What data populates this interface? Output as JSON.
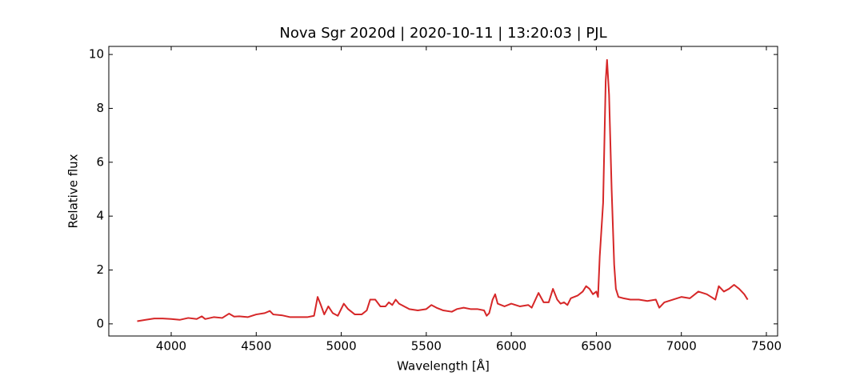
{
  "chart_data": {
    "type": "line",
    "title": "Nova Sgr 2020d | 2020-10-11 | 13:20:03 | PJL",
    "xlabel": "Wavelength [Å]",
    "ylabel": "Relative flux",
    "x": [
      3800,
      3850,
      3900,
      3950,
      4000,
      4050,
      4100,
      4150,
      4180,
      4200,
      4250,
      4300,
      4340,
      4370,
      4400,
      4450,
      4500,
      4550,
      4580,
      4600,
      4650,
      4700,
      4750,
      4800,
      4840,
      4861,
      4880,
      4900,
      4924,
      4950,
      4980,
      5015,
      5040,
      5080,
      5120,
      5150,
      5170,
      5200,
      5230,
      5260,
      5280,
      5300,
      5320,
      5340,
      5370,
      5400,
      5450,
      5500,
      5530,
      5560,
      5600,
      5650,
      5680,
      5720,
      5760,
      5800,
      5840,
      5855,
      5870,
      5890,
      5905,
      5920,
      5960,
      6000,
      6050,
      6100,
      6120,
      6160,
      6190,
      6220,
      6245,
      6270,
      6290,
      6310,
      6330,
      6350,
      6390,
      6420,
      6440,
      6460,
      6480,
      6500,
      6510,
      6520,
      6540,
      6555,
      6563,
      6575,
      6590,
      6605,
      6615,
      6630,
      6660,
      6700,
      6750,
      6800,
      6850,
      6870,
      6900,
      6950,
      7000,
      7050,
      7100,
      7150,
      7200,
      7220,
      7250,
      7280,
      7310,
      7340,
      7370,
      7390
    ],
    "series": [
      {
        "name": "Relative flux",
        "color": "#d62728",
        "values": [
          0.1,
          0.15,
          0.2,
          0.2,
          0.18,
          0.15,
          0.22,
          0.18,
          0.28,
          0.18,
          0.25,
          0.22,
          0.38,
          0.27,
          0.28,
          0.25,
          0.35,
          0.4,
          0.48,
          0.35,
          0.32,
          0.25,
          0.25,
          0.25,
          0.3,
          1.0,
          0.7,
          0.35,
          0.65,
          0.4,
          0.3,
          0.75,
          0.55,
          0.35,
          0.35,
          0.5,
          0.9,
          0.9,
          0.65,
          0.65,
          0.8,
          0.7,
          0.9,
          0.75,
          0.65,
          0.55,
          0.5,
          0.55,
          0.7,
          0.6,
          0.5,
          0.45,
          0.55,
          0.6,
          0.55,
          0.55,
          0.5,
          0.3,
          0.4,
          0.9,
          1.1,
          0.75,
          0.65,
          0.75,
          0.65,
          0.7,
          0.6,
          1.15,
          0.8,
          0.8,
          1.3,
          0.9,
          0.75,
          0.8,
          0.7,
          0.95,
          1.05,
          1.2,
          1.4,
          1.3,
          1.1,
          1.2,
          1.0,
          2.5,
          4.5,
          9.0,
          9.8,
          8.5,
          5.0,
          2.2,
          1.3,
          1.0,
          0.95,
          0.9,
          0.9,
          0.85,
          0.9,
          0.6,
          0.8,
          0.9,
          1.0,
          0.95,
          1.2,
          1.1,
          0.9,
          1.4,
          1.2,
          1.3,
          1.45,
          1.3,
          1.1,
          0.9
        ]
      }
    ],
    "xlim": [
      3633,
      7566
    ],
    "xticks": [
      4000,
      4500,
      5000,
      5500,
      6000,
      6500,
      7000,
      7500
    ],
    "ylim": [
      -0.45,
      10.3
    ],
    "yticks": [
      0,
      2,
      4,
      6,
      8,
      10
    ],
    "grid": false
  }
}
